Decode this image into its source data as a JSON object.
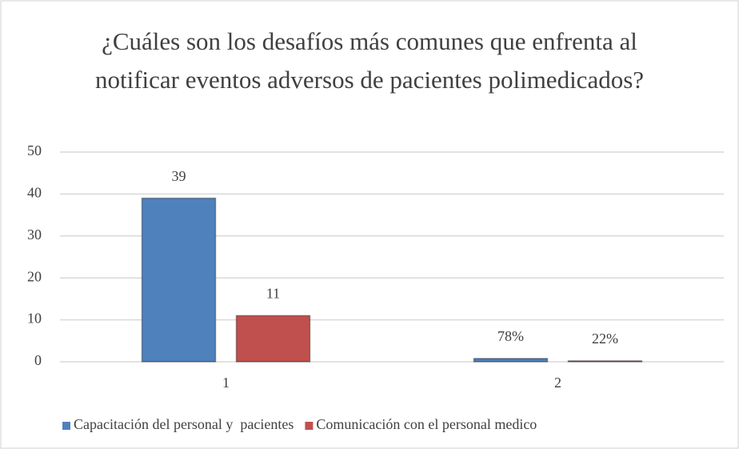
{
  "chart_data": {
    "type": "bar",
    "title": "¿Cuáles son los desafíos más comunes que enfrenta al notificar eventos adversos de pacientes polimedicados?",
    "categories": [
      "1",
      "2"
    ],
    "series": [
      {
        "name": "Capacitación del personal y  pacientes",
        "color": "#4f81bd",
        "values": [
          39,
          0.78
        ],
        "value_labels": [
          "39",
          "78%"
        ]
      },
      {
        "name": "Comunicación con el personal medico",
        "color": "#c0504d",
        "values": [
          11,
          0.22
        ],
        "value_labels": [
          "11",
          "22%"
        ]
      }
    ],
    "ylim": [
      0,
      50
    ],
    "yticks": [
      0,
      10,
      20,
      30,
      40,
      50
    ],
    "grid": true,
    "legend": "bottom"
  }
}
